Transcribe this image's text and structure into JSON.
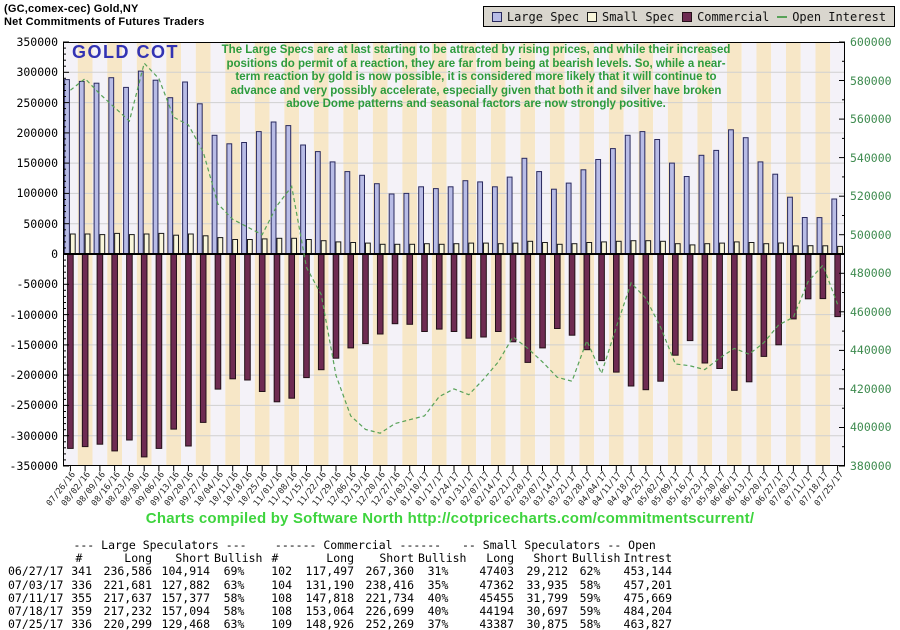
{
  "header": {
    "line1": "(GC,comex-cec) Gold,NY",
    "line2": "Net Commitments of Futures Traders"
  },
  "legend": {
    "items": [
      {
        "label": "Large Spec",
        "swatch": "large-spec-swatch"
      },
      {
        "label": "Small Spec",
        "swatch": "small-spec-swatch"
      },
      {
        "label": "Commercial",
        "swatch": "commercial-swatch"
      },
      {
        "label": "Open Interest",
        "swatch": "open-interest-swatch"
      }
    ]
  },
  "chart_label": "GOLD COT",
  "annotation": {
    "lines": [
      "The Large Specs are at last starting to be attracted by rising prices, and while their increased",
      "positions do permit of a reaction, they are far from being at bearish levels. So, while a near-",
      "term reaction by gold is now possible, it is considered more likely that it will continue to",
      "advance and very possibly accelerate, especially given that both it and silver have broken",
      "above Dome patterns and seasonal factors are now strongly positive."
    ]
  },
  "footer_credit": "Charts compiled by Software North  http://cotpricecharts.com/commitmentscurrent/",
  "colors": {
    "large_spec_fill": "#b8bce6",
    "large_spec_border": "#29295e",
    "small_spec_fill": "#f9f6da",
    "small_spec_border": "#1a1a1a",
    "commercial_fill": "#6e2b52",
    "commercial_border": "#241018",
    "open_interest_line": "#58a258",
    "stripe_pale": "#f4f2f8",
    "stripe_wheat": "#f7e7c7",
    "grid": "#d0d0d0",
    "gold_cot_blue": "#3333b3",
    "annotation_green": "#2d9b3d",
    "footer_green": "#3ed43e",
    "right_axis_green": "#3e8b4f"
  },
  "chart_data": {
    "type": "bar",
    "title": "GOLD COT - Net Commitments of Futures Traders",
    "x": [
      "07/26/16",
      "08/02/16",
      "08/09/16",
      "08/16/16",
      "08/23/16",
      "08/30/16",
      "09/06/16",
      "09/13/16",
      "09/20/16",
      "09/27/16",
      "10/04/16",
      "10/11/16",
      "10/18/16",
      "10/25/16",
      "11/01/16",
      "11/08/16",
      "11/15/16",
      "11/22/16",
      "11/29/16",
      "12/06/16",
      "12/13/16",
      "12/20/16",
      "12/27/16",
      "01/03/17",
      "01/10/17",
      "01/17/17",
      "01/24/17",
      "01/31/17",
      "02/07/17",
      "02/14/17",
      "02/21/17",
      "02/28/17",
      "03/07/17",
      "03/14/17",
      "03/21/17",
      "03/28/17",
      "04/04/17",
      "04/11/17",
      "04/18/17",
      "04/25/17",
      "05/02/17",
      "05/09/17",
      "05/16/17",
      "05/23/17",
      "05/30/17",
      "06/06/17",
      "06/13/17",
      "06/20/17",
      "06/27/17",
      "07/03/17",
      "07/11/17",
      "07/18/17",
      "07/25/17"
    ],
    "series": [
      {
        "name": "Large Spec",
        "type": "bar",
        "axis": "left",
        "values": [
          288000,
          285000,
          282000,
          291000,
          275000,
          302000,
          287000,
          258000,
          284000,
          248000,
          196000,
          182000,
          184000,
          202000,
          218000,
          212000,
          180000,
          169000,
          152000,
          136000,
          130000,
          116000,
          99000,
          100000,
          111000,
          108000,
          111000,
          121000,
          119000,
          111000,
          127000,
          158000,
          136000,
          107000,
          117000,
          139000,
          156000,
          174000,
          196000,
          202000,
          189000,
          150000,
          128000,
          163000,
          171000,
          205000,
          192000,
          152000,
          131672,
          93799,
          60260,
          60138,
          90831
        ]
      },
      {
        "name": "Small Spec",
        "type": "bar",
        "axis": "left",
        "values": [
          33000,
          33000,
          32000,
          34000,
          32000,
          33000,
          34000,
          31000,
          33000,
          30000,
          27000,
          24000,
          24000,
          25000,
          26000,
          26000,
          24000,
          22000,
          20000,
          19000,
          18000,
          16000,
          16000,
          16000,
          17000,
          16000,
          17000,
          18000,
          18000,
          17000,
          18000,
          21000,
          19000,
          16000,
          17000,
          19000,
          20000,
          21000,
          22000,
          22000,
          21000,
          17000,
          15000,
          17000,
          18000,
          20000,
          19000,
          17000,
          18191,
          13427,
          13656,
          13497,
          12512
        ]
      },
      {
        "name": "Commercial",
        "type": "bar",
        "axis": "left",
        "values": [
          -321000,
          -318000,
          -314000,
          -325000,
          -307000,
          -335000,
          -321000,
          -289000,
          -317000,
          -278000,
          -223000,
          -206000,
          -208000,
          -227000,
          -244000,
          -238000,
          -204000,
          -191000,
          -172000,
          -155000,
          -148000,
          -132000,
          -115000,
          -116000,
          -128000,
          -124000,
          -128000,
          -139000,
          -137000,
          -128000,
          -145000,
          -179000,
          -155000,
          -123000,
          -134000,
          -158000,
          -176000,
          -195000,
          -218000,
          -224000,
          -210000,
          -167000,
          -143000,
          -180000,
          -189000,
          -225000,
          -211000,
          -169000,
          -149863,
          -107226,
          -73916,
          -73635,
          -103343
        ]
      },
      {
        "name": "Open Interest",
        "type": "line",
        "axis": "right",
        "values": [
          575000,
          581000,
          573000,
          566000,
          559000,
          589000,
          581000,
          561000,
          557000,
          543000,
          516000,
          508000,
          504000,
          500000,
          515000,
          525000,
          483000,
          469000,
          427000,
          406000,
          399000,
          397000,
          402000,
          404000,
          406000,
          416000,
          420000,
          417000,
          425000,
          434000,
          447000,
          441000,
          434000,
          426000,
          424000,
          445000,
          428000,
          452000,
          475000,
          467000,
          452000,
          433000,
          432000,
          430000,
          436000,
          441000,
          438000,
          444000,
          453144,
          457201,
          475669,
          484204,
          463827
        ]
      }
    ],
    "left_axis": {
      "min": -350000,
      "max": 350000,
      "label_step": 50000,
      "minor_step": 10000,
      "tick_labels": [
        "350000",
        "300000",
        "250000",
        "200000",
        "150000",
        "100000",
        "50000",
        "0",
        "-50000",
        "-100000",
        "-150000",
        "-200000",
        "-250000",
        "-300000",
        "-350000"
      ]
    },
    "right_axis": {
      "min": 380000,
      "max": 600000,
      "label_step": 20000,
      "minor_step": 10000,
      "tick_labels": [
        "600000",
        "580000",
        "560000",
        "540000",
        "520000",
        "500000",
        "480000",
        "460000",
        "440000",
        "420000",
        "400000",
        "380000"
      ]
    },
    "grid": true,
    "legend_position": "top-right"
  },
  "table": {
    "group_headers": {
      "large": "--- Large Speculators ---",
      "commercial": "------ Commercial ------",
      "small": "-- Small Speculators --",
      "open": "Open"
    },
    "sub_headers": [
      "",
      "#",
      "Long",
      "Short",
      "Bullish",
      "#",
      "Long",
      "Short",
      "Bullish",
      "Long",
      "Short",
      "Bullish",
      "Intrest"
    ],
    "rows": [
      [
        "06/27/17",
        "341",
        "236,586",
        "104,914",
        "69%",
        "102",
        "117,497",
        "267,360",
        "31%",
        "47403",
        "29,212",
        "62%",
        "453,144"
      ],
      [
        "07/03/17",
        "336",
        "221,681",
        "127,882",
        "63%",
        "104",
        "131,190",
        "238,416",
        "35%",
        "47362",
        "33,935",
        "58%",
        "457,201"
      ],
      [
        "07/11/17",
        "355",
        "217,637",
        "157,377",
        "58%",
        "108",
        "147,818",
        "221,734",
        "40%",
        "45455",
        "31,799",
        "59%",
        "475,669"
      ],
      [
        "07/18/17",
        "359",
        "217,232",
        "157,094",
        "58%",
        "108",
        "153,064",
        "226,699",
        "40%",
        "44194",
        "30,697",
        "59%",
        "484,204"
      ],
      [
        "07/25/17",
        "336",
        "220,299",
        "129,468",
        "63%",
        "109",
        "148,926",
        "252,269",
        "37%",
        "43387",
        "30,875",
        "58%",
        "463,827"
      ]
    ]
  }
}
